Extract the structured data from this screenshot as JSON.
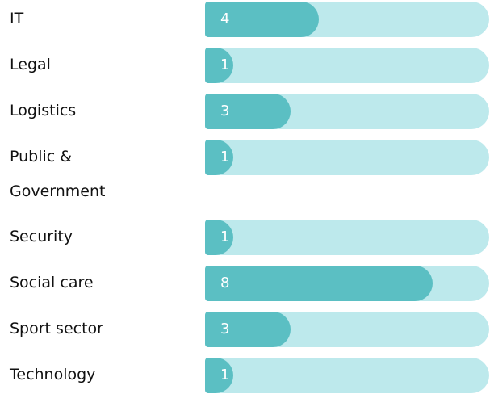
{
  "chart_data": {
    "type": "bar",
    "orientation": "horizontal",
    "categories": [
      "IT",
      "Legal",
      "Logistics",
      "Public & Government",
      "Security",
      "Social care",
      "Sport sector",
      "Technology"
    ],
    "values": [
      4,
      1,
      3,
      1,
      1,
      8,
      3,
      1
    ],
    "color": "#5bbfc3",
    "track_color": "#bde9ec",
    "xlim": [
      0,
      10
    ]
  }
}
